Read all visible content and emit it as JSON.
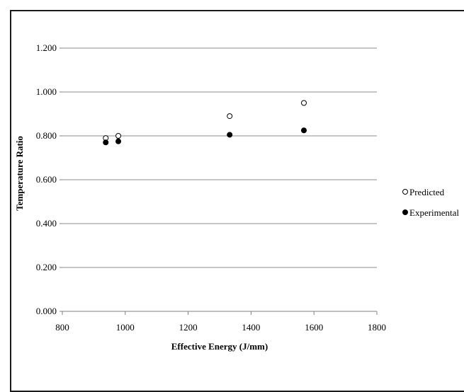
{
  "chart_data": {
    "type": "scatter",
    "title": "",
    "xlabel": "Effective Energy (J/mm)",
    "ylabel": "Temperature Ratio",
    "xlim": [
      800,
      1800
    ],
    "ylim": [
      0,
      1.2
    ],
    "x_ticks": [
      "800",
      "1000",
      "1200",
      "1400",
      "1600",
      "1800"
    ],
    "y_ticks": [
      "0.000",
      "0.200",
      "0.400",
      "0.600",
      "0.800",
      "1.000",
      "1.200"
    ],
    "grid": "horizontal",
    "legend_position": "right",
    "series": [
      {
        "name": "Predicted",
        "marker": "open-circle",
        "color": "#000000",
        "points": [
          {
            "x": 938,
            "y": 0.79
          },
          {
            "x": 978,
            "y": 0.8
          },
          {
            "x": 1332,
            "y": 0.89
          },
          {
            "x": 1568,
            "y": 0.95
          }
        ]
      },
      {
        "name": "Experimental",
        "marker": "filled-circle",
        "color": "#000000",
        "points": [
          {
            "x": 938,
            "y": 0.77
          },
          {
            "x": 978,
            "y": 0.775
          },
          {
            "x": 1332,
            "y": 0.805
          },
          {
            "x": 1568,
            "y": 0.825
          }
        ]
      }
    ]
  }
}
